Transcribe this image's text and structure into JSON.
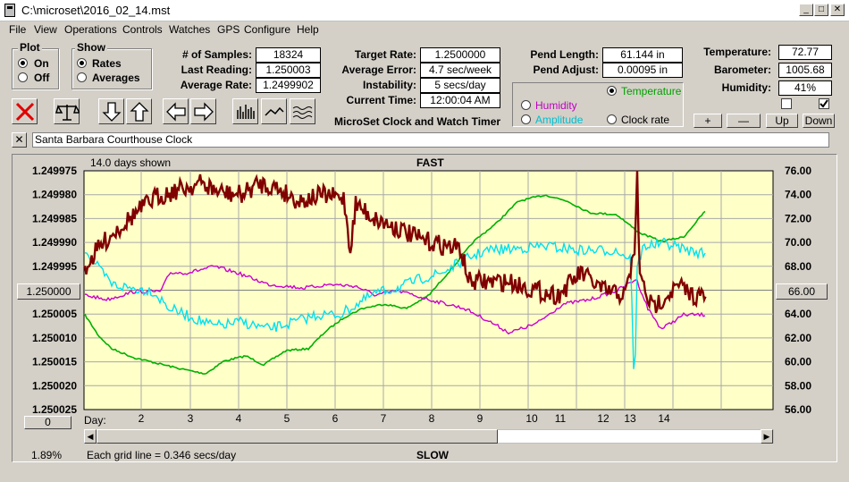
{
  "window": {
    "title": "C:\\microset\\2016_02_14.mst",
    "minimize": "_",
    "maximize": "□",
    "close": "✕"
  },
  "menu": [
    "File",
    "View",
    "Operations",
    "Controls",
    "Watches",
    "GPS",
    "Configure",
    "Help"
  ],
  "plot_group": {
    "title": "Plot",
    "options": [
      "On",
      "Off"
    ],
    "selected": "On"
  },
  "show_group": {
    "title": "Show",
    "options": [
      "Rates",
      "Averages"
    ],
    "selected": "Rates"
  },
  "stats": {
    "samples_label": "# of Samples:",
    "samples": "18324",
    "last_label": "Last Reading:",
    "last": "1.250003",
    "avg_label": "Average Rate:",
    "avg": "1.2499902",
    "target_label": "Target Rate:",
    "target": "1.2500000",
    "avgerr_label": "Average Error:",
    "avgerr": "4.7 sec/week",
    "instab_label": "Instability:",
    "instab": "5 secs/day",
    "time_label": "Current Time:",
    "time": "12:00:04 AM",
    "pendlen_label": "Pend Length:",
    "pendlen": "61.144 in",
    "pendadj_label": "Pend Adjust:",
    "pendadj": "0.00095 in",
    "temp_label": "Temperature:",
    "temp": "72.77",
    "baro_label": "Barometer:",
    "baro": "1005.68",
    "hum_label": "Humidity:",
    "hum": "41%"
  },
  "app_title": "MicroSet Clock and Watch Timer",
  "channels": {
    "temperature": {
      "label": "Temperature",
      "color": "#00a000"
    },
    "humidity": {
      "label": "Humidity",
      "color": "#c000c0"
    },
    "amplitude": {
      "label": "Amplitude",
      "color": "#00c8d8"
    },
    "clockrate": {
      "label": "Clock rate",
      "color": "#000000"
    },
    "selected": "Temperature"
  },
  "scale_buttons": [
    "+",
    "—",
    "Up",
    "Down"
  ],
  "watch_name": "Santa Barbara Courthouse Clock",
  "watch_close": "✕",
  "plot": {
    "days_shown": "14.0 days shown",
    "fast": "FAST",
    "slow": "SLOW",
    "left_ticks": [
      "1.249975",
      "1.249980",
      "1.249985",
      "1.249990",
      "1.249995",
      "1.250000",
      "1.250005",
      "1.250010",
      "1.250015",
      "1.250020",
      "1.250025"
    ],
    "left_center": "1.250000",
    "right_ticks": [
      "76.00",
      "74.00",
      "72.00",
      "70.00",
      "68.00",
      "66.00",
      "64.00",
      "62.00",
      "60.00",
      "58.00",
      "56.00"
    ],
    "right_center": "66.00",
    "day_label": "Day:",
    "days": [
      "2",
      "3",
      "4",
      "5",
      "6",
      "7",
      "8",
      "9",
      "10",
      "11",
      "12",
      "13",
      "14"
    ],
    "offset_box": "0",
    "percent": "1.89%",
    "grid_note": "Each grid line = 0.346 secs/day",
    "bg": "#ffffc8",
    "rate_color": "#800000",
    "temp_color": "#00b000",
    "hum_color": "#cc00cc",
    "amp_color": "#00e0f0"
  }
}
